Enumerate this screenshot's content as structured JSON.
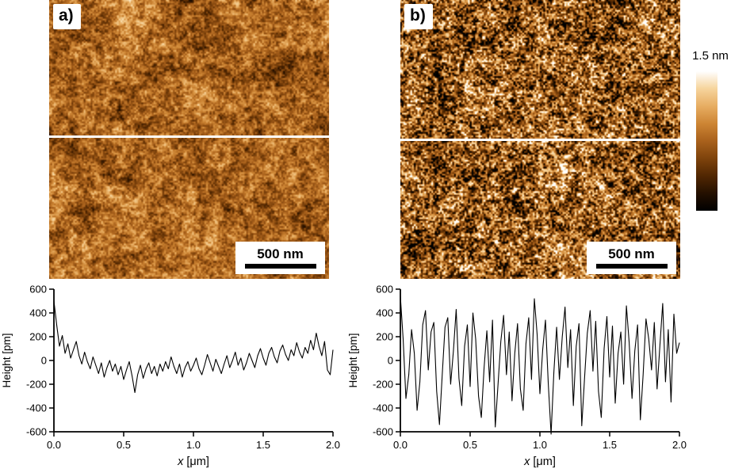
{
  "panels": [
    {
      "label": "a)",
      "scalebar_label": "500 nm",
      "noise": {
        "seed": 42,
        "base": 0.52,
        "gain": 1.15,
        "octaves": [
          [
            8,
            0.16
          ],
          [
            24,
            0.2
          ],
          [
            64,
            0.26
          ],
          [
            160,
            0.3
          ]
        ]
      }
    },
    {
      "label": "b)",
      "scalebar_label": "500 nm",
      "noise": {
        "seed": 99,
        "base": 0.47,
        "gain": 1.5,
        "octaves": [
          [
            8,
            0.14
          ],
          [
            24,
            0.22
          ],
          [
            64,
            0.34
          ],
          [
            160,
            0.62
          ]
        ]
      }
    }
  ],
  "colorbar": {
    "max_label": "1.5 nm",
    "stops": [
      "#000000",
      "#241000",
      "#512702",
      "#7e430c",
      "#a9611c",
      "#cd8534",
      "#e7ad62",
      "#f6d49c",
      "#ffffff"
    ]
  },
  "chart_data": [
    {
      "type": "line",
      "title": "",
      "xlabel": "x [μm]",
      "ylabel": "Height [pm]",
      "xlim": [
        0.0,
        2.0
      ],
      "ylim": [
        -600,
        600
      ],
      "x_ticks": [
        0.0,
        0.5,
        1.0,
        1.5,
        2.0
      ],
      "x_tick_labels": [
        "0.0",
        "0.5",
        "1.0",
        "1.5",
        "2.0"
      ],
      "y_ticks": [
        600,
        400,
        200,
        0,
        -200,
        -400,
        -600
      ],
      "grid": false,
      "legend": "none",
      "x_start": 0,
      "x_step": 0.02,
      "values": [
        500,
        300,
        120,
        210,
        60,
        140,
        20,
        90,
        160,
        40,
        -30,
        70,
        -10,
        -70,
        30,
        -40,
        -110,
        -20,
        -140,
        -60,
        0,
        -90,
        -30,
        -120,
        -50,
        -160,
        -80,
        -10,
        -130,
        -270,
        -120,
        -40,
        -150,
        -70,
        -20,
        -110,
        -50,
        -130,
        -30,
        -90,
        -10,
        -70,
        30,
        -50,
        -110,
        -30,
        -140,
        -60,
        -10,
        -90,
        -40,
        20,
        -70,
        -120,
        -40,
        50,
        -20,
        -90,
        10,
        -50,
        -110,
        -30,
        40,
        -60,
        0,
        70,
        -40,
        20,
        -80,
        -20,
        60,
        0,
        -60,
        40,
        100,
        20,
        -40,
        60,
        110,
        30,
        -20,
        80,
        130,
        50,
        0,
        90,
        40,
        150,
        70,
        20,
        110,
        60,
        170,
        90,
        230,
        120,
        40,
        160,
        -80,
        -120,
        90
      ]
    },
    {
      "type": "line",
      "title": "",
      "xlabel": "x [μm]",
      "ylabel": "Height [pm]",
      "xlim": [
        0.0,
        2.0
      ],
      "ylim": [
        -600,
        600
      ],
      "x_ticks": [
        0.0,
        0.5,
        1.0,
        1.5,
        2.0
      ],
      "x_tick_labels": [
        "0.0",
        "0.5",
        "1.0",
        "1.5",
        "2.0"
      ],
      "y_ticks": [
        600,
        400,
        200,
        0,
        -200,
        -400,
        -600
      ],
      "grid": false,
      "legend": "none",
      "x_start": 0,
      "x_step": 0.02,
      "values": [
        540,
        180,
        -320,
        -120,
        260,
        60,
        -420,
        -180,
        300,
        420,
        -80,
        240,
        320,
        -260,
        -540,
        -120,
        280,
        360,
        -200,
        80,
        430,
        -150,
        -380,
        120,
        300,
        -220,
        400,
        180,
        -300,
        -480,
        -60,
        250,
        -180,
        340,
        -560,
        -200,
        160,
        380,
        -120,
        240,
        -340,
        60,
        310,
        -240,
        -420,
        140,
        360,
        -160,
        520,
        220,
        -280,
        90,
        340,
        -200,
        -620,
        -100,
        280,
        -160,
        200,
        450,
        -60,
        260,
        -380,
        120,
        310,
        -550,
        -150,
        230,
        420,
        -90,
        330,
        -260,
        -480,
        100,
        370,
        -140,
        290,
        -360,
        60,
        240,
        -200,
        460,
        150,
        -320,
        80,
        300,
        -500,
        -120,
        350,
        180,
        -80,
        320,
        -240,
        130,
        480,
        -180,
        260,
        -350,
        390,
        60,
        150
      ]
    }
  ]
}
